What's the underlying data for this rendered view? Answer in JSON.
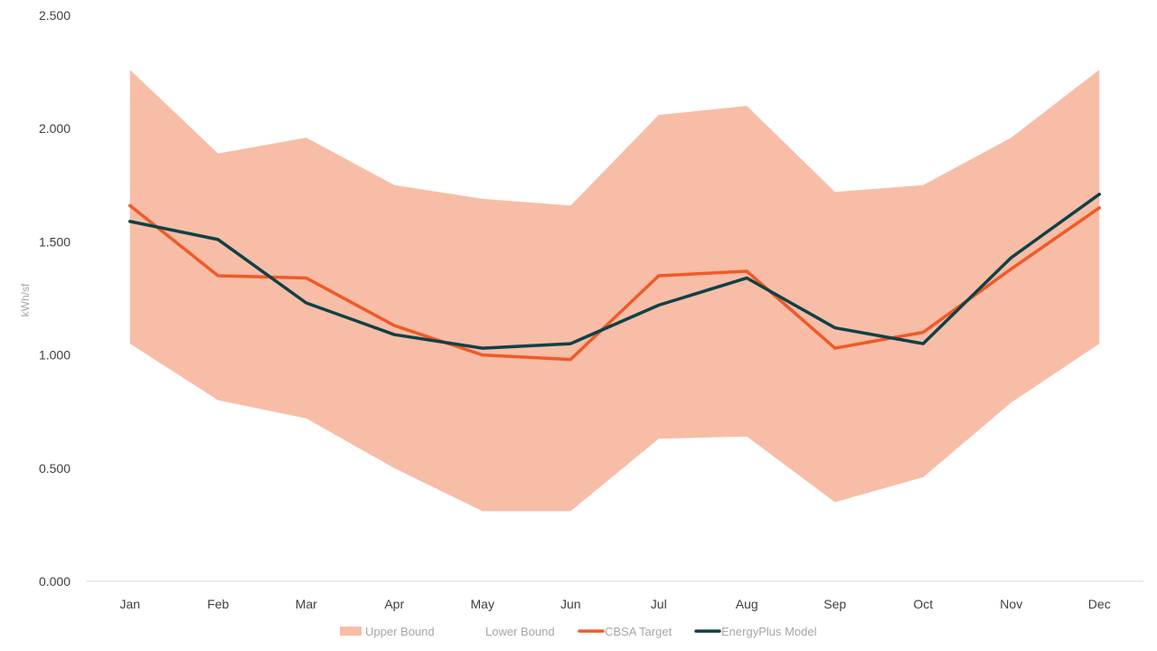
{
  "chart_data": {
    "type": "line",
    "title": "",
    "xlabel": "",
    "ylabel": "kWh/sf",
    "ylim": [
      0,
      2.5
    ],
    "yticks": [
      "0.000",
      "0.500",
      "1.000",
      "1.500",
      "2.000",
      "2.500"
    ],
    "ytick_values": [
      0,
      0.5,
      1.0,
      1.5,
      2.0,
      2.5
    ],
    "grid": false,
    "legend_position": "bottom",
    "categories": [
      "Jan",
      "Feb",
      "Mar",
      "Apr",
      "May",
      "Jun",
      "Jul",
      "Aug",
      "Sep",
      "Oct",
      "Nov",
      "Dec"
    ],
    "series": [
      {
        "name": "Upper Bound",
        "kind": "band-upper",
        "color": "#f8bda6",
        "values": [
          2.26,
          1.89,
          1.96,
          1.75,
          1.69,
          1.66,
          2.06,
          2.1,
          1.72,
          1.75,
          1.96,
          2.26
        ]
      },
      {
        "name": "Lower Bound",
        "kind": "band-lower",
        "color": "#ffffff",
        "values": [
          1.05,
          0.8,
          0.72,
          0.5,
          0.31,
          0.31,
          0.63,
          0.64,
          0.35,
          0.46,
          0.79,
          1.05
        ]
      },
      {
        "name": "CBSA Target",
        "kind": "line",
        "color": "#f05a28",
        "values": [
          1.66,
          1.35,
          1.34,
          1.13,
          1.0,
          0.98,
          1.35,
          1.37,
          1.03,
          1.1,
          1.38,
          1.65
        ]
      },
      {
        "name": "EnergyPlus Model",
        "kind": "line",
        "color": "#0f4147",
        "values": [
          1.59,
          1.51,
          1.23,
          1.09,
          1.03,
          1.05,
          1.22,
          1.34,
          1.12,
          1.05,
          1.43,
          1.71
        ]
      }
    ]
  }
}
